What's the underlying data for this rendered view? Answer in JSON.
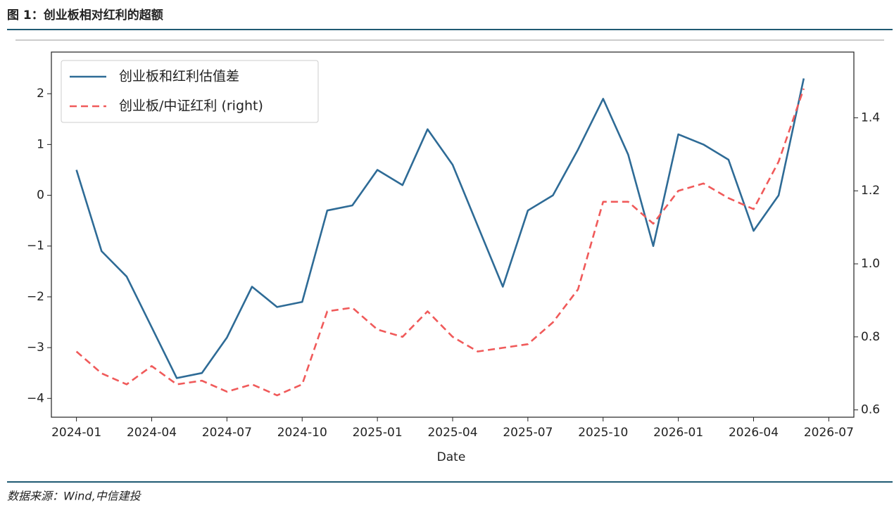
{
  "header": {
    "title": "图 1：创业板相对红利的超额"
  },
  "source": "数据来源：Wind,中信建投",
  "chart_data": {
    "type": "line",
    "xlabel": "Date",
    "x": [
      "2024-01",
      "2024-02",
      "2024-03",
      "2024-04",
      "2024-05",
      "2024-06",
      "2024-07",
      "2024-08",
      "2024-09",
      "2024-10",
      "2024-11",
      "2024-12",
      "2025-01",
      "2025-02",
      "2025-03",
      "2025-04",
      "2025-05",
      "2025-06",
      "2025-07",
      "2025-08",
      "2025-09",
      "2025-10",
      "2025-11",
      "2025-12",
      "2026-01",
      "2026-02",
      "2026-03",
      "2026-04",
      "2026-05",
      "2026-06"
    ],
    "xlim": [
      "2023-12",
      "2026-08"
    ],
    "xticks": [
      "2024-01",
      "2024-04",
      "2024-07",
      "2024-10",
      "2025-01",
      "2025-04",
      "2025-07",
      "2025-10",
      "2026-01",
      "2026-04",
      "2026-07"
    ],
    "ylim": [
      -4.37,
      2.82
    ],
    "yticks": [
      {
        "value": -4,
        "label": "−4"
      },
      {
        "value": -3,
        "label": "−3"
      },
      {
        "value": -2,
        "label": "−2"
      },
      {
        "value": -1,
        "label": "−1"
      },
      0,
      1,
      2
    ],
    "y2lim": [
      0.58,
      1.58
    ],
    "y2ticks": [
      0.6,
      0.8,
      {
        "value": 1,
        "label": "1.0"
      },
      1.2,
      1.4
    ],
    "legend": "upper left",
    "series": [
      {
        "name": "创业板和红利估值差",
        "color": "#2e6b96",
        "style": "solid",
        "values": [
          0.5,
          -1.1,
          -1.6,
          -2.6,
          -3.6,
          -3.5,
          -2.8,
          -1.8,
          -2.2,
          -2.1,
          -0.3,
          -0.2,
          0.5,
          0.2,
          1.3,
          0.6,
          -0.6,
          -1.8,
          -0.3,
          0.0,
          0.9,
          1.9,
          0.8,
          -1.0,
          1.2,
          1.0,
          0.7,
          -0.7,
          0.0,
          2.3
        ]
      },
      {
        "name": "创业板/中证红利 (right)",
        "color": "#f05a5a",
        "style": "dashed",
        "axis": "y2",
        "values": [
          0.76,
          0.7,
          0.67,
          0.72,
          0.67,
          0.68,
          0.65,
          0.67,
          0.64,
          0.67,
          0.87,
          0.88,
          0.82,
          0.8,
          0.87,
          0.8,
          0.76,
          0.77,
          0.78,
          0.84,
          0.93,
          1.17,
          1.17,
          1.11,
          1.2,
          1.22,
          1.18,
          1.15,
          1.28,
          1.48
        ]
      }
    ]
  }
}
